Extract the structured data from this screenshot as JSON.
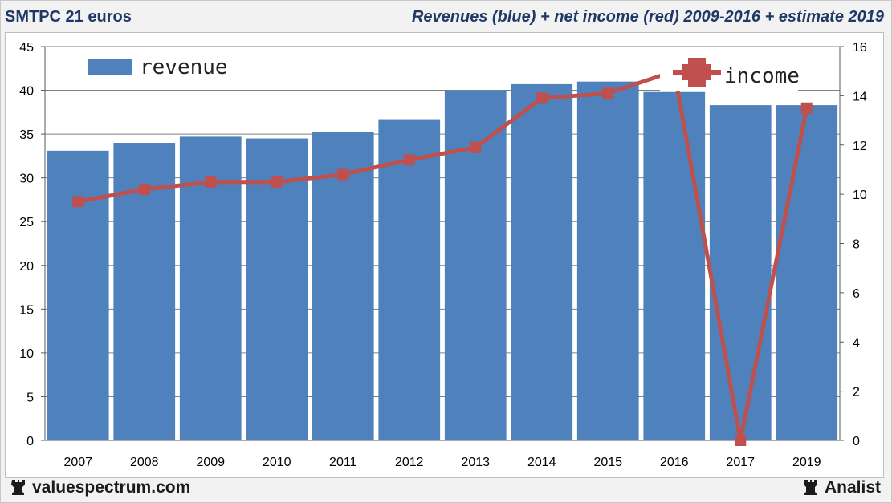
{
  "header": {
    "left_title": "SMTPC 21 euros",
    "right_title": "Revenues (blue) + net income (red) 2009-2016 + estimate 2019"
  },
  "footer": {
    "left_brand": "valuespectrum.com",
    "right_brand": "Analist",
    "brand_icon": "chess-rook-icon"
  },
  "colors": {
    "bar": "#4f81bd",
    "line": "#c0504d",
    "title": "#1f3864",
    "grid": "#808080"
  },
  "chart_data": {
    "type": "bar",
    "categories": [
      "2007",
      "2008",
      "2009",
      "2010",
      "2011",
      "2012",
      "2013",
      "2014",
      "2015",
      "2016",
      "2017",
      "2019"
    ],
    "series": [
      {
        "name": "revenue",
        "type": "bar",
        "axis": "left",
        "values": [
          33.1,
          34.0,
          34.7,
          34.5,
          35.2,
          36.7,
          40.0,
          40.7,
          41.0,
          39.8,
          38.3,
          38.3
        ]
      },
      {
        "name": "income",
        "type": "line",
        "axis": "right",
        "values": [
          9.7,
          10.2,
          10.5,
          10.5,
          10.8,
          11.4,
          11.9,
          13.9,
          14.1,
          15.0,
          0.0,
          13.5
        ]
      }
    ],
    "y_left": {
      "ticks": [
        "0",
        "5",
        "10",
        "15",
        "20",
        "25",
        "30",
        "35",
        "40",
        "45"
      ],
      "ylim": [
        0,
        45
      ]
    },
    "y_right": {
      "ticks": [
        "0",
        "2",
        "4",
        "6",
        "8",
        "10",
        "12",
        "14",
        "16"
      ],
      "ylim": [
        0,
        16
      ]
    },
    "grid": true,
    "legend": [
      {
        "label": "revenue",
        "position": "top-left"
      },
      {
        "label": "income",
        "position": "top-right"
      }
    ]
  }
}
